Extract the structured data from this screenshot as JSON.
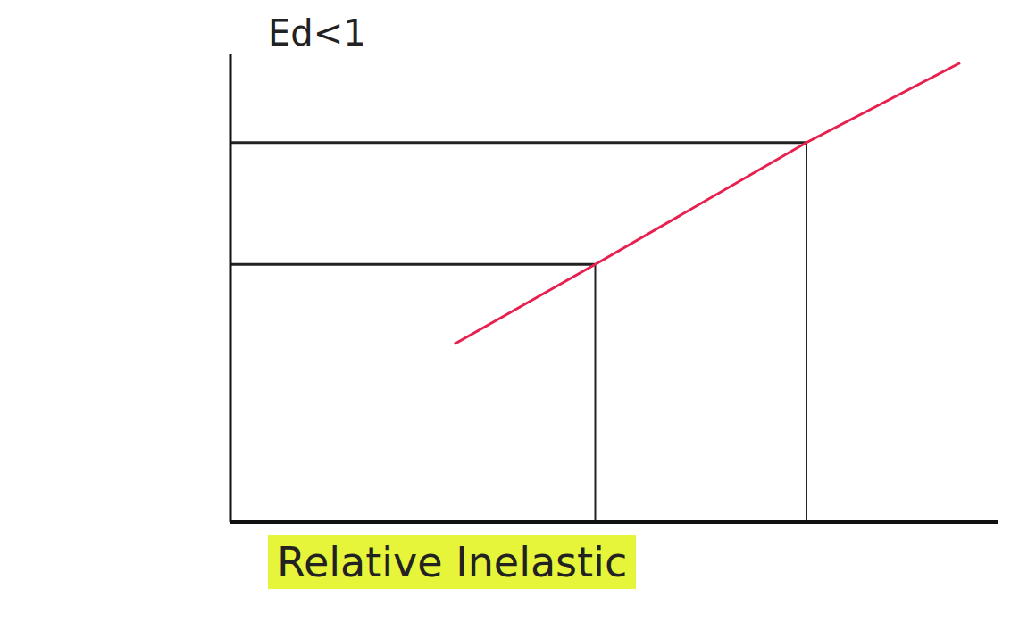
{
  "chart_data": {
    "type": "line",
    "title": "Ed<1",
    "annotations": [
      "Relative Inelastic"
    ],
    "x": [
      3.5,
      5.7,
      9.0,
      11.4
    ],
    "values": [
      3.8,
      5.5,
      8.1,
      9.8
    ],
    "color": "#e8204f",
    "xlim": [
      0,
      12
    ],
    "ylim": [
      0,
      10
    ],
    "tick_labels": false,
    "grid": false,
    "marked_points": {
      "x": [
        5.7,
        9.0
      ],
      "y": [
        5.5,
        8.1
      ]
    }
  }
}
